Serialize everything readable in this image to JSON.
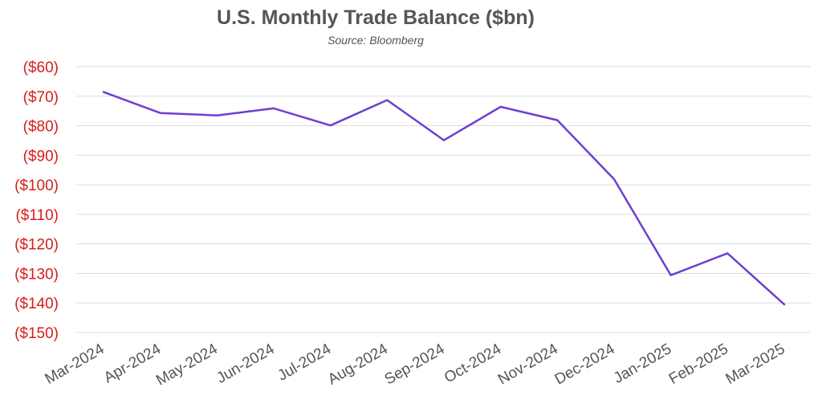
{
  "chart_data": {
    "type": "line",
    "title": "U.S. Monthly Trade Balance ($bn)",
    "subtitle": "Source: Bloomberg",
    "xlabel": "",
    "ylabel": "",
    "categories": [
      "Mar-2024",
      "Apr-2024",
      "May-2024",
      "Jun-2024",
      "Jul-2024",
      "Aug-2024",
      "Sep-2024",
      "Oct-2024",
      "Nov-2024",
      "Dec-2024",
      "Jan-2025",
      "Feb-2025",
      "Mar-2025"
    ],
    "series": [
      {
        "values": [
          -68.6,
          -75.7,
          -76.5,
          -74.1,
          -79.9,
          -71.3,
          -84.9,
          -73.6,
          -78.1,
          -98.1,
          -130.6,
          -123.2,
          -140.5
        ]
      }
    ],
    "ylim": [
      -150,
      -60
    ],
    "yticks": [
      -60,
      -70,
      -80,
      -90,
      -100,
      -110,
      -120,
      -130,
      -140,
      -150
    ],
    "ytick_labels": [
      "($60)",
      "($70)",
      "($80)",
      "($90)",
      "($100)",
      "($110)",
      "($120)",
      "($130)",
      "($140)",
      "($150)"
    ],
    "grid": true,
    "legend": "none",
    "colors": {
      "line": "#6e3fd1",
      "ytick_text": "#d91c1c",
      "xtick_text": "#555555",
      "title_text": "#555555",
      "grid": "#dcdcdc"
    }
  }
}
